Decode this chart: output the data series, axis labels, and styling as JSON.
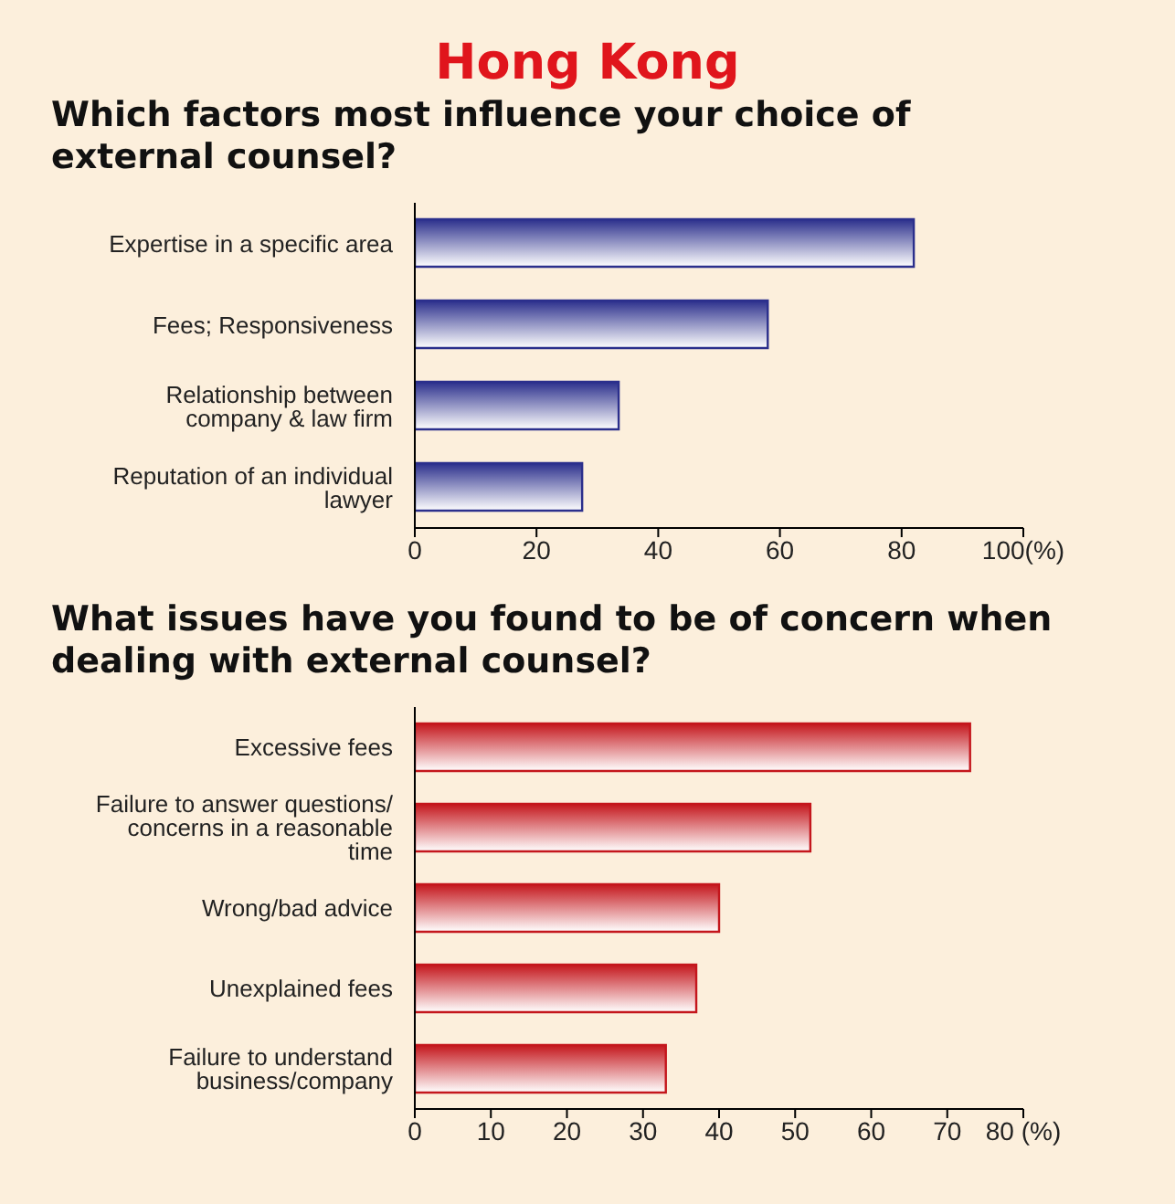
{
  "chart_data": [
    {
      "type": "bar",
      "orientation": "horizontal",
      "title": "Hong Kong",
      "subtitle": "Which factors most influence your choice of external counsel?",
      "categories": [
        "Expertise in a specific area",
        "Fees; Responsiveness",
        "Relationship between company & law firm",
        "Reputation of an individual lawyer"
      ],
      "values": [
        82,
        58,
        33.5,
        27.5
      ],
      "color": "#2b2f8c",
      "xlim": [
        0,
        100
      ],
      "xticks": [
        0,
        20,
        40,
        60,
        80,
        {
          "value": 100,
          "label": "100(%)"
        }
      ]
    },
    {
      "type": "bar",
      "orientation": "horizontal",
      "title": "What issues have you found to be of concern when dealing with external counsel?",
      "categories": [
        "Excessive fees",
        "Failure to answer questions/ concerns in a reasonable time",
        "Wrong/bad advice",
        "Unexplained fees",
        "Failure to understand business/company"
      ],
      "values": [
        73,
        52,
        40,
        37,
        33
      ],
      "color": "#c4161c",
      "xlim": [
        0,
        80
      ],
      "xticks": [
        0,
        10,
        20,
        30,
        40,
        50,
        60,
        70,
        {
          "value": 80,
          "label": "80 (%)"
        }
      ]
    }
  ]
}
